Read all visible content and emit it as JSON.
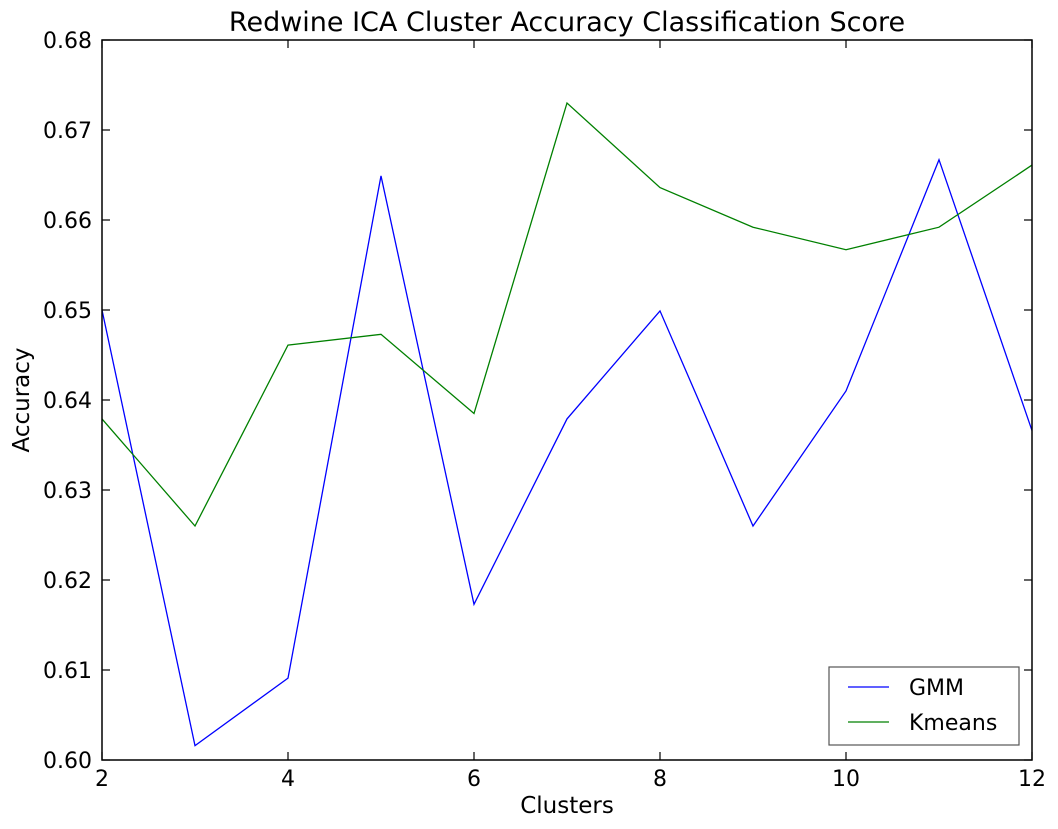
{
  "chart_data": {
    "type": "line",
    "title": "Redwine ICA Cluster Accuracy Classification Score",
    "xlabel": "Clusters",
    "ylabel": "Accuracy",
    "xlim": [
      2,
      12
    ],
    "ylim": [
      0.6,
      0.68
    ],
    "x_ticks": [
      "2",
      "4",
      "6",
      "8",
      "10",
      "12"
    ],
    "y_ticks": [
      "0.60",
      "0.61",
      "0.62",
      "0.63",
      "0.64",
      "0.65",
      "0.66",
      "0.67",
      "0.68"
    ],
    "grid": false,
    "legend_position": "lower-right",
    "x": [
      2,
      3,
      4,
      5,
      6,
      7,
      8,
      9,
      10,
      11,
      12
    ],
    "series": [
      {
        "name": "GMM",
        "color": "#0000ff",
        "values": [
          0.65,
          0.6016,
          0.6091,
          0.6649,
          0.6173,
          0.6379,
          0.6499,
          0.626,
          0.641,
          0.6667,
          0.6366
        ]
      },
      {
        "name": "Kmeans",
        "color": "#008000",
        "values": [
          0.6379,
          0.626,
          0.6461,
          0.6473,
          0.6385,
          0.673,
          0.6636,
          0.6592,
          0.6567,
          0.6592,
          0.6661
        ]
      }
    ]
  }
}
